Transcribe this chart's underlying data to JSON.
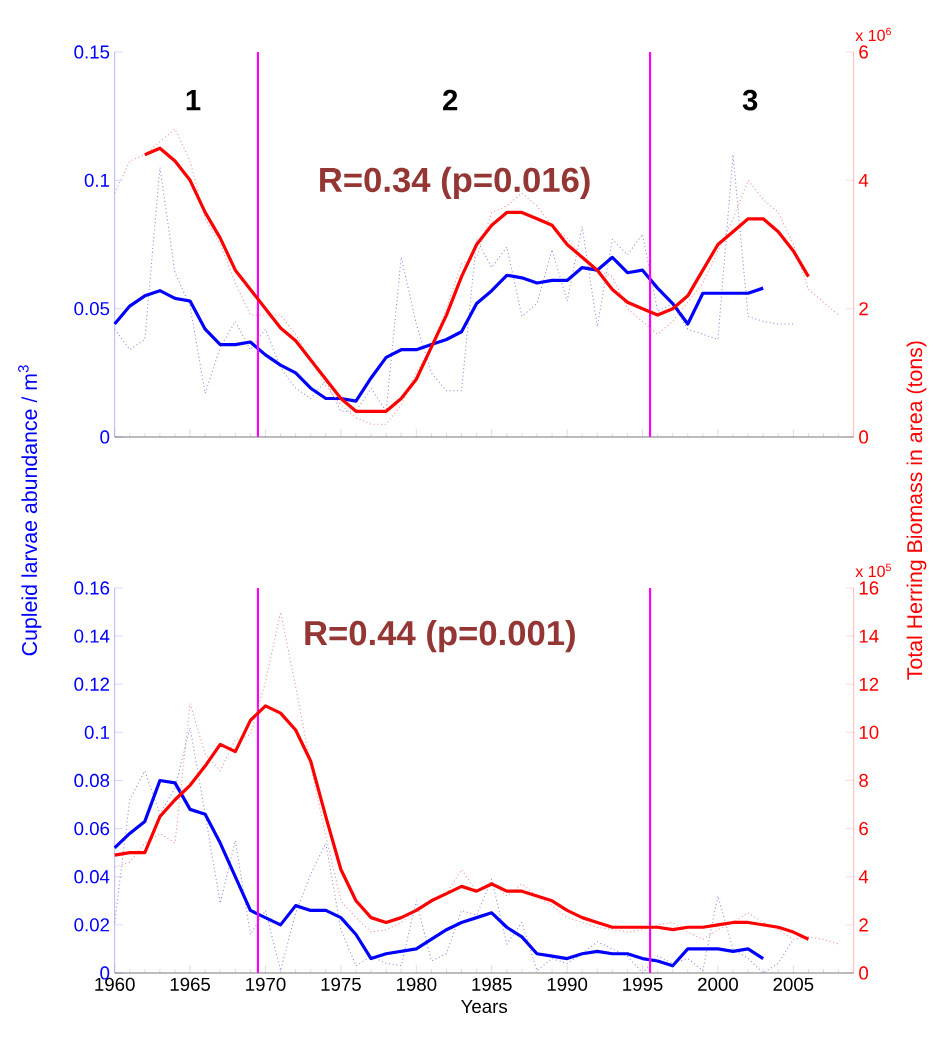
{
  "chart_data": [
    {
      "type": "line",
      "ylabel": "Cupleid larvae abundance / m$^{3}$",
      "y2label": "Total Herring Biomass in area (tons)",
      "tick_labels": "y",
      "xlim": [
        1960,
        2009
      ],
      "ylim": [
        0,
        0.15
      ],
      "yticks": [
        0,
        0.05,
        0.1,
        0.15
      ],
      "y2lim": [
        0,
        6
      ],
      "y2ticks": [
        0,
        2,
        4,
        6
      ],
      "xticks": [
        1960,
        {
          "value": 1961,
          "label": null
        },
        {
          "value": 1962,
          "label": null
        },
        {
          "value": 1963,
          "label": null
        },
        {
          "value": 1964,
          "label": null
        },
        1965,
        {
          "value": 1966,
          "label": null
        },
        {
          "value": 1967,
          "label": null
        },
        {
          "value": 1968,
          "label": null
        },
        {
          "value": 1969,
          "label": null
        },
        1970,
        {
          "value": 1971,
          "label": null
        },
        {
          "value": 1972,
          "label": null
        },
        {
          "value": 1973,
          "label": null
        },
        {
          "value": 1974,
          "label": null
        },
        1975,
        {
          "value": 1976,
          "label": null
        },
        {
          "value": 1977,
          "label": null
        },
        {
          "value": 1978,
          "label": null
        },
        {
          "value": 1979,
          "label": null
        },
        1980,
        {
          "value": 1981,
          "label": null
        },
        {
          "value": 1982,
          "label": null
        },
        {
          "value": 1983,
          "label": null
        },
        {
          "value": 1984,
          "label": null
        },
        1985,
        {
          "value": 1986,
          "label": null
        },
        {
          "value": 1987,
          "label": null
        },
        {
          "value": 1988,
          "label": null
        },
        {
          "value": 1989,
          "label": null
        },
        1990,
        {
          "value": 1991,
          "label": null
        },
        {
          "value": 1992,
          "label": null
        },
        {
          "value": 1993,
          "label": null
        },
        {
          "value": 1994,
          "label": null
        },
        1995,
        {
          "value": 1996,
          "label": null
        },
        {
          "value": 1997,
          "label": null
        },
        {
          "value": 1998,
          "label": null
        },
        {
          "value": 1999,
          "label": null
        },
        2000,
        {
          "value": 2001,
          "label": null
        },
        {
          "value": 2002,
          "label": null
        },
        {
          "value": 2003,
          "label": null
        },
        {
          "value": 2004,
          "label": null
        },
        2005,
        {
          "value": 2006,
          "label": null
        },
        {
          "value": 2007,
          "label": null
        },
        {
          "value": 2008,
          "label": null
        }
      ],
      "series": [
        {
          "color": "#8c8ce6",
          "line_style": "dotted",
          "x": [
            1960,
            1961,
            1962,
            1963,
            1964,
            1965,
            1966,
            1967,
            1968,
            1969,
            1970,
            1971,
            1972,
            1973,
            1974,
            1975,
            1976,
            1977,
            1978,
            1979,
            1980,
            1981,
            1982,
            1983,
            1984,
            1985,
            1986,
            1987,
            1988,
            1989,
            1990,
            1991,
            1992,
            1993,
            1994,
            1995,
            1996,
            1997,
            1998,
            1999,
            2000,
            2001,
            2002,
            2003,
            2004,
            2005
          ],
          "values": [
            0.042,
            0.034,
            0.038,
            0.105,
            0.064,
            0.051,
            0.017,
            0.035,
            0.045,
            0.034,
            0.042,
            0.027,
            0.019,
            0.015,
            0.022,
            0.01,
            0.01,
            0.019,
            0.01,
            0.07,
            0.044,
            0.025,
            0.018,
            0.018,
            0.077,
            0.066,
            0.074,
            0.047,
            0.052,
            0.073,
            0.053,
            0.082,
            0.043,
            0.077,
            0.071,
            0.079,
            0.049,
            0.052,
            0.042,
            0.04,
            0.038,
            0.11,
            0.047,
            0.045,
            0.044,
            0.044
          ]
        },
        {
          "color": "#f09090",
          "line_style": "dotted",
          "axis": "y2",
          "x": [
            1960,
            1961,
            1962,
            1963,
            1964,
            1965,
            1966,
            1967,
            1968,
            1969,
            1970,
            1971,
            1972,
            1973,
            1974,
            1975,
            1976,
            1977,
            1978,
            1979,
            1980,
            1981,
            1982,
            1983,
            1984,
            1985,
            1986,
            1987,
            1988,
            1989,
            1990,
            1991,
            1992,
            1993,
            1994,
            1995,
            1996,
            1997,
            1998,
            1999,
            2000,
            2001,
            2002,
            2003,
            2004,
            2005,
            2006,
            2007,
            2008
          ],
          "values": [
            3.8,
            4.3,
            4.4,
            4.6,
            4.8,
            4.3,
            3.4,
            3.0,
            2.4,
            1.9,
            1.9,
            1.9,
            1.6,
            1.2,
            0.8,
            0.5,
            0.3,
            0.2,
            0.2,
            0.5,
            1.0,
            1.4,
            2.0,
            2.7,
            2.8,
            3.5,
            3.6,
            3.8,
            3.6,
            3.3,
            3.1,
            2.8,
            2.6,
            2.5,
            2.0,
            1.8,
            1.6,
            1.8,
            2.1,
            2.4,
            2.9,
            3.4,
            4.0,
            3.7,
            3.5,
            3.0,
            2.3,
            2.1,
            1.9
          ]
        },
        {
          "color": "#0000ff",
          "line_style": "solid",
          "x": [
            1960,
            1961,
            1962,
            1963,
            1964,
            1965,
            1966,
            1967,
            1968,
            1969,
            1970,
            1971,
            1972,
            1973,
            1974,
            1975,
            1976,
            1977,
            1978,
            1979,
            1980,
            1981,
            1982,
            1983,
            1984,
            1985,
            1986,
            1987,
            1988,
            1989,
            1990,
            1991,
            1992,
            1993,
            1994,
            1995,
            1996,
            1997,
            1998,
            1999,
            2000,
            2001,
            2002,
            2003
          ],
          "values": [
            0.044,
            0.051,
            0.055,
            0.057,
            0.054,
            0.053,
            0.042,
            0.036,
            0.036,
            0.037,
            0.032,
            0.028,
            0.025,
            0.019,
            0.015,
            0.015,
            0.014,
            0.023,
            0.031,
            0.034,
            0.034,
            0.036,
            0.038,
            0.041,
            0.052,
            0.057,
            0.063,
            0.062,
            0.06,
            0.061,
            0.061,
            0.066,
            0.065,
            0.07,
            0.064,
            0.065,
            0.058,
            0.052,
            0.044,
            0.056,
            0.056,
            0.056,
            0.056,
            0.058
          ]
        },
        {
          "color": "#ff0000",
          "line_style": "solid",
          "axis": "y2",
          "x": [
            1962,
            1963,
            1964,
            1965,
            1966,
            1967,
            1968,
            1969,
            1970,
            1971,
            1972,
            1973,
            1974,
            1975,
            1976,
            1977,
            1978,
            1979,
            1980,
            1981,
            1982,
            1983,
            1984,
            1985,
            1986,
            1987,
            1988,
            1989,
            1990,
            1991,
            1992,
            1993,
            1994,
            1995,
            1996,
            1997,
            1998,
            1999,
            2000,
            2001,
            2002,
            2003,
            2004,
            2005,
            2006
          ],
          "values": [
            4.4,
            4.5,
            4.3,
            4.0,
            3.5,
            3.1,
            2.6,
            2.3,
            2.0,
            1.7,
            1.5,
            1.2,
            0.9,
            0.6,
            0.4,
            0.4,
            0.4,
            0.6,
            0.9,
            1.4,
            1.9,
            2.5,
            3.0,
            3.3,
            3.5,
            3.5,
            3.4,
            3.3,
            3.0,
            2.8,
            2.6,
            2.3,
            2.1,
            2.0,
            1.9,
            2.0,
            2.2,
            2.6,
            3.0,
            3.2,
            3.4,
            3.4,
            3.2,
            2.9,
            2.5
          ]
        }
      ],
      "ref_lines": [
        {
          "axis": "x",
          "value": 1969.5,
          "color": "#ff00ff"
        },
        {
          "axis": "x",
          "value": 1995.5,
          "color": "#ff00ff"
        }
      ],
      "annotations": [
        "1",
        "2",
        "3",
        "R=0.34 (p=0.016)",
        "x 10$^{6}$"
      ]
    },
    {
      "type": "line",
      "xlabel": "Years",
      "xlim": [
        1960,
        2009
      ],
      "ylim": [
        0,
        0.16
      ],
      "yticks": [
        0,
        0.02,
        0.04,
        0.06,
        0.08,
        0.1,
        0.12,
        0.14,
        0.16
      ],
      "y2lim": [
        0,
        16
      ],
      "y2ticks": [
        0,
        2,
        4,
        6,
        8,
        10,
        12,
        14,
        16
      ],
      "xticks": [
        1960,
        {
          "value": 1961,
          "label": null
        },
        {
          "value": 1962,
          "label": null
        },
        {
          "value": 1963,
          "label": null
        },
        {
          "value": 1964,
          "label": null
        },
        1965,
        {
          "value": 1966,
          "label": null
        },
        {
          "value": 1967,
          "label": null
        },
        {
          "value": 1968,
          "label": null
        },
        {
          "value": 1969,
          "label": null
        },
        1970,
        {
          "value": 1971,
          "label": null
        },
        {
          "value": 1972,
          "label": null
        },
        {
          "value": 1973,
          "label": null
        },
        {
          "value": 1974,
          "label": null
        },
        1975,
        {
          "value": 1976,
          "label": null
        },
        {
          "value": 1977,
          "label": null
        },
        {
          "value": 1978,
          "label": null
        },
        {
          "value": 1979,
          "label": null
        },
        1980,
        {
          "value": 1981,
          "label": null
        },
        {
          "value": 1982,
          "label": null
        },
        {
          "value": 1983,
          "label": null
        },
        {
          "value": 1984,
          "label": null
        },
        1985,
        {
          "value": 1986,
          "label": null
        },
        {
          "value": 1987,
          "label": null
        },
        {
          "value": 1988,
          "label": null
        },
        {
          "value": 1989,
          "label": null
        },
        1990,
        {
          "value": 1991,
          "label": null
        },
        {
          "value": 1992,
          "label": null
        },
        {
          "value": 1993,
          "label": null
        },
        {
          "value": 1994,
          "label": null
        },
        1995,
        {
          "value": 1996,
          "label": null
        },
        {
          "value": 1997,
          "label": null
        },
        {
          "value": 1998,
          "label": null
        },
        {
          "value": 1999,
          "label": null
        },
        2000,
        {
          "value": 2001,
          "label": null
        },
        {
          "value": 2002,
          "label": null
        },
        {
          "value": 2003,
          "label": null
        },
        {
          "value": 2004,
          "label": null
        },
        2005,
        {
          "value": 2006,
          "label": null
        },
        {
          "value": 2007,
          "label": null
        },
        {
          "value": 2008,
          "label": null
        }
      ],
      "series": [
        {
          "color": "#8c8ce6",
          "line_style": "dotted",
          "x": [
            1960,
            1961,
            1962,
            1963,
            1964,
            1965,
            1966,
            1967,
            1968,
            1969,
            1970,
            1971,
            1972,
            1973,
            1974,
            1975,
            1976,
            1977,
            1978,
            1979,
            1980,
            1981,
            1982,
            1983,
            1984,
            1985,
            1986,
            1987,
            1988,
            1989,
            1990,
            1991,
            1992,
            1993,
            1994,
            1995,
            1996,
            1997,
            1998,
            1999,
            2000,
            2001,
            2002,
            2003,
            2004,
            2005
          ],
          "values": [
            0.021,
            0.072,
            0.084,
            0.066,
            0.077,
            0.102,
            0.066,
            0.029,
            0.055,
            0.016,
            0.026,
            0.001,
            0.025,
            0.041,
            0.054,
            0.018,
            0.003,
            0.007,
            0.004,
            0.003,
            0.03,
            0.005,
            0.008,
            0.026,
            0.024,
            0.039,
            0.012,
            0.021,
            0.001,
            0.006,
            0.004,
            0.008,
            0.013,
            0.01,
            0.007,
            0.0,
            0.007,
            0.004,
            0.006,
            0.001,
            0.032,
            0.01,
            0.006,
            0.0,
            0.004,
            0.014
          ]
        },
        {
          "color": "#f09090",
          "line_style": "dotted",
          "axis": "y2",
          "x": [
            1960,
            1961,
            1962,
            1963,
            1964,
            1965,
            1966,
            1967,
            1968,
            1969,
            1970,
            1971,
            1972,
            1973,
            1974,
            1975,
            1976,
            1977,
            1978,
            1979,
            1980,
            1981,
            1982,
            1983,
            1984,
            1985,
            1986,
            1987,
            1988,
            1989,
            1990,
            1991,
            1992,
            1993,
            1994,
            1995,
            1996,
            1997,
            1998,
            1999,
            2000,
            2001,
            2002,
            2003,
            2004,
            2005,
            2006,
            2007,
            2008
          ],
          "values": [
            4.4,
            4.6,
            5.4,
            5.8,
            5.4,
            11.2,
            9.1,
            8.4,
            9.7,
            9.9,
            12.1,
            15.0,
            11.9,
            8.6,
            5.7,
            3.0,
            2.3,
            1.7,
            1.8,
            2.1,
            2.6,
            3.0,
            3.3,
            4.3,
            3.4,
            3.8,
            3.2,
            3.7,
            3.2,
            2.8,
            2.3,
            2.1,
            1.9,
            1.8,
            1.7,
            1.8,
            2.0,
            2.1,
            1.7,
            1.4,
            1.8,
            2.1,
            2.5,
            2.1,
            1.8,
            1.4,
            1.5,
            1.4,
            1.2
          ]
        },
        {
          "color": "#0000ff",
          "line_style": "solid",
          "x": [
            1960,
            1961,
            1962,
            1963,
            1964,
            1965,
            1966,
            1967,
            1968,
            1969,
            1970,
            1971,
            1972,
            1973,
            1974,
            1975,
            1976,
            1977,
            1978,
            1979,
            1980,
            1981,
            1982,
            1983,
            1984,
            1985,
            1986,
            1987,
            1988,
            1989,
            1990,
            1991,
            1992,
            1993,
            1994,
            1995,
            1996,
            1997,
            1998,
            1999,
            2000,
            2001,
            2002,
            2003
          ],
          "values": [
            0.052,
            0.058,
            0.063,
            0.08,
            0.079,
            0.068,
            0.066,
            0.054,
            0.04,
            0.026,
            0.023,
            0.02,
            0.028,
            0.026,
            0.026,
            0.023,
            0.016,
            0.006,
            0.008,
            0.009,
            0.01,
            0.014,
            0.018,
            0.021,
            0.023,
            0.025,
            0.019,
            0.015,
            0.008,
            0.007,
            0.006,
            0.008,
            0.009,
            0.008,
            0.008,
            0.006,
            0.005,
            0.003,
            0.01,
            0.01,
            0.01,
            0.009,
            0.01,
            0.006
          ]
        },
        {
          "color": "#ff0000",
          "line_style": "solid",
          "axis": "y2",
          "x": [
            1960,
            1961,
            1962,
            1963,
            1964,
            1965,
            1966,
            1967,
            1968,
            1969,
            1970,
            1971,
            1972,
            1973,
            1974,
            1975,
            1976,
            1977,
            1978,
            1979,
            1980,
            1981,
            1982,
            1983,
            1984,
            1985,
            1986,
            1987,
            1988,
            1989,
            1990,
            1991,
            1992,
            1993,
            1994,
            1995,
            1996,
            1997,
            1998,
            1999,
            2000,
            2001,
            2002,
            2003,
            2004,
            2005,
            2006
          ],
          "values": [
            4.9,
            5.0,
            5.0,
            6.5,
            7.2,
            7.8,
            8.6,
            9.5,
            9.2,
            10.5,
            11.1,
            10.8,
            10.1,
            8.8,
            6.5,
            4.3,
            3.0,
            2.3,
            2.1,
            2.3,
            2.6,
            3.0,
            3.3,
            3.6,
            3.4,
            3.7,
            3.4,
            3.4,
            3.2,
            3.0,
            2.6,
            2.3,
            2.1,
            1.9,
            1.9,
            1.9,
            1.9,
            1.8,
            1.9,
            1.9,
            2.0,
            2.1,
            2.1,
            2.0,
            1.9,
            1.7,
            1.4
          ]
        }
      ],
      "ref_lines": [
        {
          "axis": "x",
          "value": 1969.5,
          "color": "#ff00ff"
        },
        {
          "axis": "x",
          "value": 1995.5,
          "color": "#ff00ff"
        }
      ],
      "annotations": [
        "R=0.44 (p=0.001)",
        "x 10$^{5}$"
      ]
    }
  ]
}
